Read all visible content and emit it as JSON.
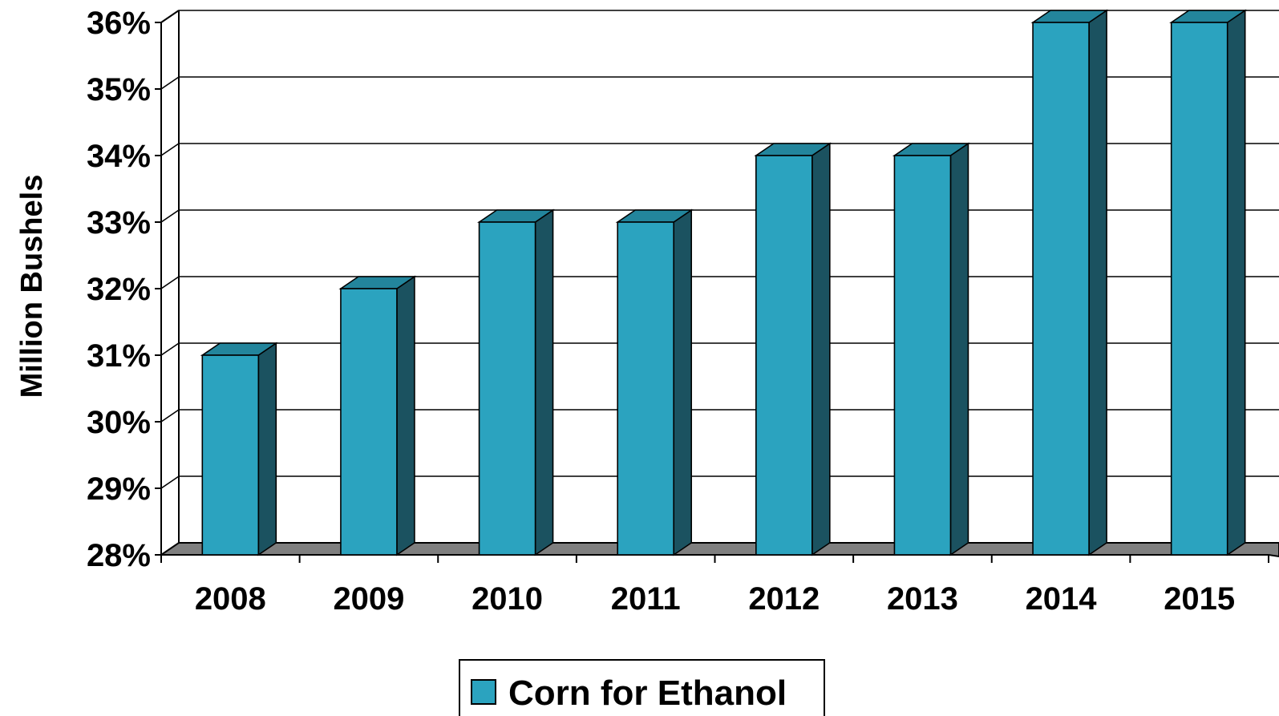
{
  "chart_data": {
    "type": "bar",
    "style": "3d",
    "title": "",
    "xlabel": "",
    "ylabel": "Million Bushels",
    "categories": [
      "2008",
      "2009",
      "2010",
      "2011",
      "2012",
      "2013",
      "2014",
      "2015"
    ],
    "y_tick_labels": [
      "28%",
      "29%",
      "30%",
      "31%",
      "32%",
      "33%",
      "34%",
      "35%",
      "36%"
    ],
    "ylim": [
      28,
      36
    ],
    "grid": true,
    "legend_position": "bottom-center",
    "series": [
      {
        "name": "Corn for Ethanol",
        "values": [
          31,
          32,
          33,
          33,
          34,
          34,
          36,
          36
        ]
      }
    ],
    "colors": {
      "bar_front": "#2ba3bf",
      "bar_top": "#23859c",
      "bar_side": "#1b5260",
      "floor": "#7f7f7f",
      "grid": "#000000"
    }
  }
}
